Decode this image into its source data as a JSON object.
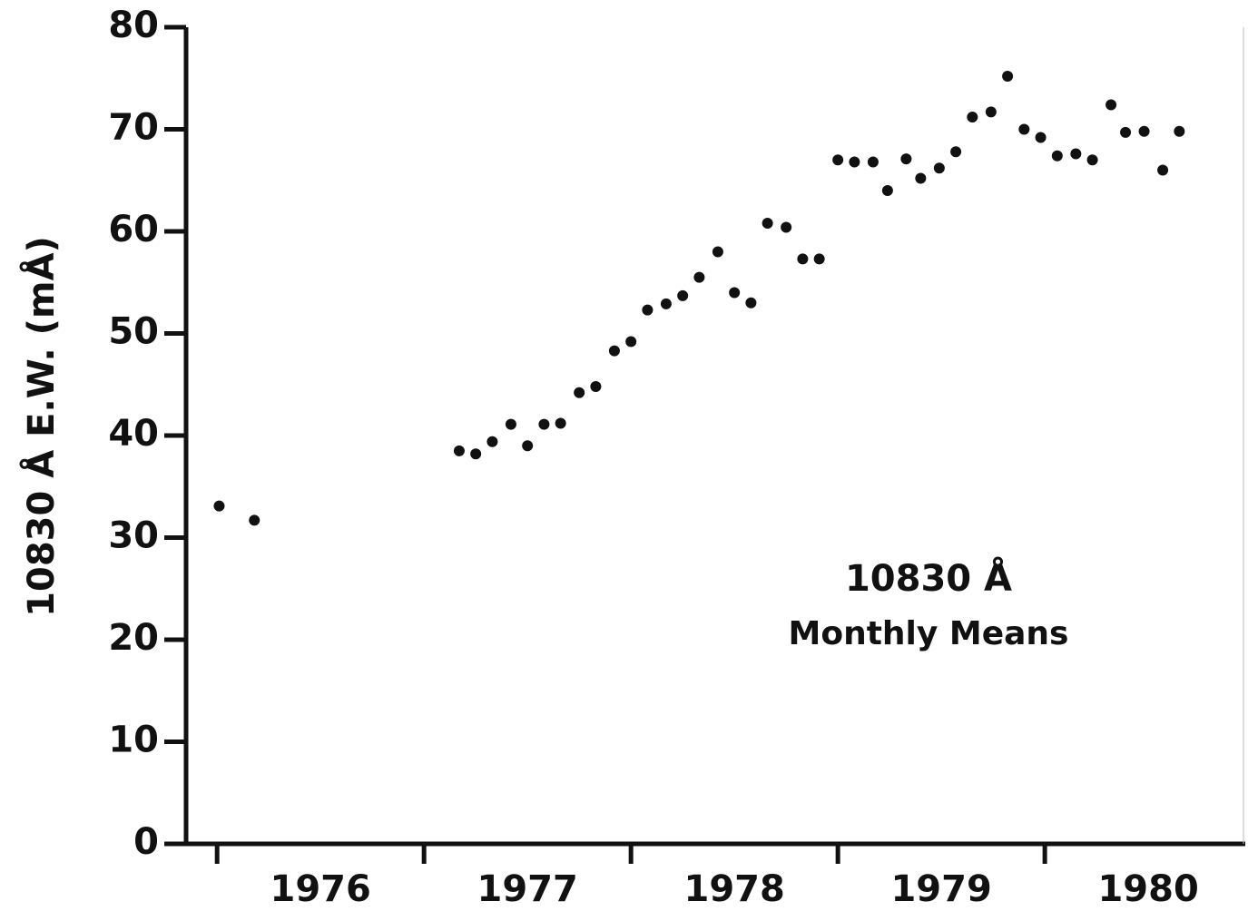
{
  "chart_data": {
    "type": "scatter",
    "ylabel": "10830 Å E.W. (mÅ)",
    "annotations": [
      "10830 Å",
      "Monthly Means"
    ],
    "color": "#111111",
    "x": [
      1976.01,
      1976.18,
      1977.17,
      1977.25,
      1977.33,
      1977.42,
      1977.5,
      1977.58,
      1977.66,
      1977.75,
      1977.83,
      1977.92,
      1978.0,
      1978.08,
      1978.17,
      1978.25,
      1978.33,
      1978.42,
      1978.5,
      1978.58,
      1978.66,
      1978.75,
      1978.83,
      1978.91,
      1979.0,
      1979.08,
      1979.17,
      1979.24,
      1979.33,
      1979.4,
      1979.49,
      1979.57,
      1979.65,
      1979.74,
      1979.82,
      1979.9,
      1979.98,
      1980.06,
      1980.15,
      1980.23,
      1980.32,
      1980.39,
      1980.48,
      1980.57,
      1980.65
    ],
    "values": [
      33.1,
      31.7,
      38.5,
      38.2,
      39.4,
      41.1,
      39.0,
      41.1,
      41.2,
      44.2,
      44.8,
      48.3,
      49.2,
      52.3,
      52.9,
      53.7,
      55.5,
      58.0,
      54.0,
      53.0,
      60.8,
      60.4,
      57.3,
      57.3,
      67.0,
      66.8,
      66.8,
      64.0,
      67.1,
      65.2,
      66.2,
      67.8,
      71.2,
      71.7,
      75.2,
      70.0,
      69.2,
      67.4,
      67.6,
      67.0,
      72.4,
      69.7,
      69.8,
      66.0,
      69.8
    ],
    "xlim": [
      1975.85,
      1980.96
    ],
    "xticks": [
      1976,
      1977,
      1978,
      1979,
      1980
    ],
    "ylim": [
      0,
      80
    ],
    "yticks": [
      0,
      10,
      20,
      30,
      40,
      50,
      60,
      70,
      80
    ]
  }
}
